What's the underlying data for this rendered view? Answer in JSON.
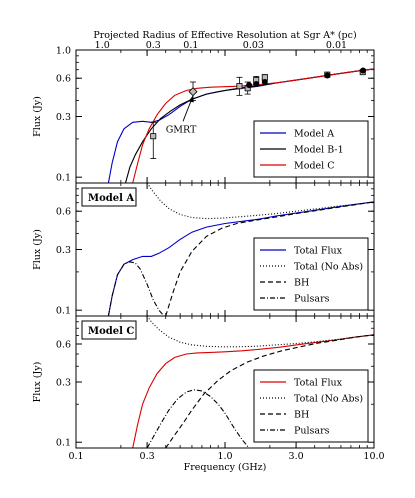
{
  "chart_data": {
    "type": "line",
    "top_axis": {
      "label": "Projected Radius of Effective Resolution at Sgr A* (pc)",
      "ticks": [
        {
          "label": "1.0",
          "freq": 0.15
        },
        {
          "label": "0.3",
          "freq": 0.33
        },
        {
          "label": "0.1",
          "freq": 0.59
        },
        {
          "label": "0.03",
          "freq": 1.55
        },
        {
          "label": "0.01",
          "freq": 5.6
        }
      ]
    },
    "xaxis": {
      "label": "Frequency (GHz)",
      "scale": "log",
      "range": [
        0.1,
        10.0
      ],
      "ticks": [
        {
          "label": "0.1",
          "value": 0.1
        },
        {
          "label": "0.3",
          "value": 0.3
        },
        {
          "label": "1.0",
          "value": 1.0
        },
        {
          "label": "3.0",
          "value": 3.0
        },
        {
          "label": "10.0",
          "value": 10.0
        }
      ]
    },
    "yaxis_label": "Flux (Jy)",
    "panels": [
      {
        "id": "models",
        "yscale": "log",
        "ylim": [
          0.09,
          1.0
        ],
        "yticks": [
          {
            "label": "1.0",
            "value": 1.0
          },
          {
            "label": "0.6",
            "value": 0.6
          },
          {
            "label": "0.3",
            "value": 0.3
          },
          {
            "label": "0.1",
            "value": 0.1
          }
        ],
        "legend": "lower right",
        "series": [
          {
            "name": "Model A",
            "color": "#0000cc",
            "style": "solid",
            "x": [
              0.165,
              0.175,
              0.19,
              0.21,
              0.24,
              0.28,
              0.32,
              0.36,
              0.42,
              0.5,
              0.6,
              0.75,
              1.0,
              1.3,
              1.7,
              2.2,
              3.0,
              4.0,
              5.5,
              7.5,
              10.0
            ],
            "y": [
              0.09,
              0.13,
              0.19,
              0.24,
              0.27,
              0.275,
              0.27,
              0.28,
              0.31,
              0.36,
              0.41,
              0.45,
              0.48,
              0.5,
              0.52,
              0.55,
              0.58,
              0.61,
              0.645,
              0.68,
              0.71
            ]
          },
          {
            "name": "Model B-1",
            "color": "#000000",
            "style": "solid",
            "x": [
              0.215,
              0.23,
              0.25,
              0.28,
              0.32,
              0.37,
              0.43,
              0.5,
              0.6,
              0.75,
              0.9,
              1.1,
              1.4,
              1.8,
              2.3,
              3.0,
              4.0,
              5.5,
              7.5,
              10.0
            ],
            "y": [
              0.09,
              0.12,
              0.15,
              0.19,
              0.24,
              0.29,
              0.33,
              0.37,
              0.41,
              0.45,
              0.47,
              0.49,
              0.51,
              0.53,
              0.555,
              0.58,
              0.61,
              0.645,
              0.68,
              0.71
            ]
          },
          {
            "name": "Model C",
            "color": "#dd0000",
            "style": "solid",
            "x": [
              0.24,
              0.26,
              0.28,
              0.31,
              0.35,
              0.4,
              0.46,
              0.55,
              0.65,
              0.8,
              1.0,
              1.3,
              1.7,
              2.3,
              3.0,
              4.0,
              5.5,
              7.5,
              10.0
            ],
            "y": [
              0.09,
              0.13,
              0.18,
              0.24,
              0.31,
              0.38,
              0.44,
              0.48,
              0.5,
              0.51,
              0.515,
              0.52,
              0.535,
              0.555,
              0.58,
              0.61,
              0.645,
              0.68,
              0.71
            ]
          }
        ],
        "observations": [
          {
            "marker": "square",
            "x": 0.33,
            "y": 0.21,
            "yerr_low": 0.14,
            "yerr_high": 0.27
          },
          {
            "marker": "diamond",
            "x": 0.61,
            "y": 0.47,
            "yerr_low": 0.4,
            "yerr_high": 0.56
          },
          {
            "marker": "square",
            "x": 1.25,
            "y": 0.52,
            "yerr_low": 0.44,
            "yerr_high": 0.61
          },
          {
            "marker": "square",
            "x": 1.42,
            "y": 0.5,
            "yerr_low": 0.45,
            "yerr_high": 0.56
          },
          {
            "marker": "square",
            "x": 1.62,
            "y": 0.58,
            "yerr_low": 0.54,
            "yerr_high": 0.62
          },
          {
            "marker": "square",
            "x": 1.85,
            "y": 0.61,
            "yerr_low": 0.58,
            "yerr_high": 0.64
          },
          {
            "marker": "circle",
            "x": 1.45,
            "y": 0.53
          },
          {
            "marker": "circle",
            "x": 1.62,
            "y": 0.54
          },
          {
            "marker": "circle",
            "x": 1.85,
            "y": 0.56
          },
          {
            "marker": "square",
            "x": 4.86,
            "y": 0.64
          },
          {
            "marker": "circle",
            "x": 4.86,
            "y": 0.63
          },
          {
            "marker": "square",
            "x": 8.4,
            "y": 0.67
          },
          {
            "marker": "circle",
            "x": 8.45,
            "y": 0.69
          }
        ],
        "annotation": {
          "text": "GMRT",
          "target_x": 0.61,
          "target_y": 0.44
        }
      },
      {
        "id": "modelA",
        "panel_label": "Model A",
        "yscale": "log",
        "ylim": [
          0.09,
          1.0
        ],
        "yticks": [
          {
            "label": "0.6",
            "value": 0.6
          },
          {
            "label": "0.3",
            "value": 0.3
          },
          {
            "label": "0.1",
            "value": 0.1
          }
        ],
        "legend": "lower right",
        "series": [
          {
            "name": "Total Flux",
            "color": "#0000cc",
            "style": "solid",
            "x": [
              0.165,
              0.175,
              0.19,
              0.21,
              0.24,
              0.28,
              0.32,
              0.36,
              0.42,
              0.5,
              0.6,
              0.75,
              1.0,
              1.3,
              1.7,
              2.2,
              3.0,
              4.0,
              5.5,
              7.5,
              10.0
            ],
            "y": [
              0.09,
              0.13,
              0.19,
              0.23,
              0.25,
              0.265,
              0.265,
              0.28,
              0.31,
              0.36,
              0.41,
              0.45,
              0.48,
              0.5,
              0.52,
              0.55,
              0.58,
              0.61,
              0.645,
              0.68,
              0.71
            ]
          },
          {
            "name": "Total (No Abs)",
            "color": "#000000",
            "style": "dotted",
            "x": [
              0.3,
              0.33,
              0.37,
              0.42,
              0.5,
              0.6,
              0.75,
              0.95,
              1.2,
              1.6,
              2.2,
              3.0,
              4.0,
              5.5,
              7.5,
              10.0
            ],
            "y": [
              1.0,
              0.85,
              0.72,
              0.63,
              0.565,
              0.535,
              0.525,
              0.53,
              0.54,
              0.555,
              0.575,
              0.6,
              0.625,
              0.655,
              0.68,
              0.71
            ]
          },
          {
            "name": "BH",
            "color": "#000000",
            "style": "dashed",
            "x": [
              0.4,
              0.45,
              0.5,
              0.6,
              0.75,
              0.95,
              1.2,
              1.6,
              2.2,
              3.0,
              4.0,
              5.5,
              7.5,
              10.0
            ],
            "y": [
              0.09,
              0.14,
              0.2,
              0.29,
              0.38,
              0.44,
              0.48,
              0.51,
              0.54,
              0.575,
              0.605,
              0.64,
              0.675,
              0.71
            ]
          },
          {
            "name": "Pulsars",
            "color": "#000000",
            "style": "dashdot",
            "x": [
              0.165,
              0.175,
              0.19,
              0.21,
              0.23,
              0.25,
              0.27,
              0.3,
              0.33,
              0.36,
              0.39
            ],
            "y": [
              0.09,
              0.13,
              0.19,
              0.23,
              0.24,
              0.235,
              0.21,
              0.16,
              0.12,
              0.1,
              0.09
            ]
          }
        ]
      },
      {
        "id": "modelC",
        "panel_label": "Model C",
        "yscale": "log",
        "ylim": [
          0.09,
          1.0
        ],
        "yticks": [
          {
            "label": "0.6",
            "value": 0.6
          },
          {
            "label": "0.3",
            "value": 0.3
          },
          {
            "label": "0.1",
            "value": 0.1
          }
        ],
        "legend": "lower right",
        "series": [
          {
            "name": "Total Flux",
            "color": "#dd0000",
            "style": "solid",
            "x": [
              0.24,
              0.26,
              0.28,
              0.31,
              0.35,
              0.4,
              0.46,
              0.55,
              0.65,
              0.8,
              1.0,
              1.3,
              1.7,
              2.3,
              3.0,
              4.0,
              5.5,
              7.5,
              10.0
            ],
            "y": [
              0.09,
              0.14,
              0.2,
              0.27,
              0.35,
              0.42,
              0.47,
              0.5,
              0.51,
              0.515,
              0.52,
              0.53,
              0.545,
              0.565,
              0.59,
              0.615,
              0.645,
              0.68,
              0.71
            ]
          },
          {
            "name": "Total (No Abs)",
            "color": "#000000",
            "style": "dotted",
            "x": [
              0.3,
              0.32,
              0.36,
              0.42,
              0.5,
              0.6,
              0.75,
              0.95,
              1.2,
              1.6,
              2.2,
              3.0,
              4.0,
              5.5,
              7.5,
              10.0
            ],
            "y": [
              1.0,
              0.9,
              0.78,
              0.68,
              0.62,
              0.59,
              0.575,
              0.57,
              0.57,
              0.575,
              0.59,
              0.605,
              0.625,
              0.65,
              0.68,
              0.71
            ]
          },
          {
            "name": "BH",
            "color": "#000000",
            "style": "dashed",
            "x": [
              0.4,
              0.45,
              0.52,
              0.6,
              0.72,
              0.9,
              1.1,
              1.4,
              1.8,
              2.4,
              3.2,
              4.2,
              5.5,
              7.5,
              10.0
            ],
            "y": [
              0.09,
              0.11,
              0.14,
              0.18,
              0.24,
              0.31,
              0.37,
              0.43,
              0.48,
              0.53,
              0.57,
              0.61,
              0.64,
              0.68,
              0.71
            ]
          },
          {
            "name": "Pulsars",
            "color": "#000000",
            "style": "dashdot",
            "x": [
              0.3,
              0.33,
              0.37,
              0.42,
              0.48,
              0.55,
              0.62,
              0.7,
              0.8,
              0.9,
              1.0,
              1.15,
              1.3,
              1.45
            ],
            "y": [
              0.09,
              0.11,
              0.14,
              0.18,
              0.22,
              0.25,
              0.26,
              0.255,
              0.23,
              0.2,
              0.17,
              0.13,
              0.105,
              0.09
            ]
          }
        ]
      }
    ]
  }
}
